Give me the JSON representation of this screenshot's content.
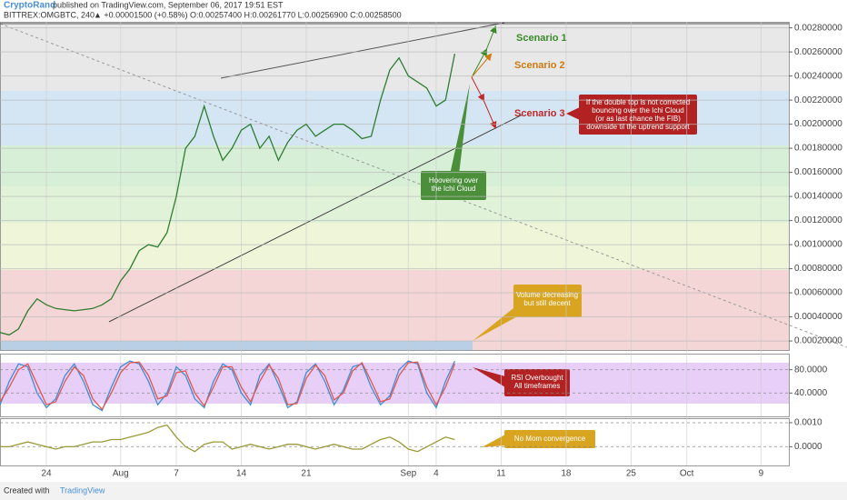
{
  "header": {
    "author": "CryptoRand",
    "published": "published on TradingView.com, September 06, 2017 19:51 EST",
    "symbol": "BITTREX:OMGBTC, 240",
    "quote": "▲ +0.00001500 (+0.58%) O:0.00257400 H:0.00261770 L:0.00256900 C:0.00258500"
  },
  "footer": {
    "created": "Created with",
    "brand": "TradingView"
  },
  "chart_data": [
    {
      "type": "line",
      "color": "#2e7d32",
      "x": [
        "2017-07-19",
        "2017-07-20",
        "2017-07-21",
        "2017-07-22",
        "2017-07-23",
        "2017-07-24",
        "2017-07-25",
        "2017-07-26",
        "2017-07-27",
        "2017-07-28",
        "2017-07-29",
        "2017-07-30",
        "2017-07-31",
        "2017-08-01",
        "2017-08-02",
        "2017-08-03",
        "2017-08-04",
        "2017-08-05",
        "2017-08-06",
        "2017-08-07",
        "2017-08-08",
        "2017-08-09",
        "2017-08-10",
        "2017-08-11",
        "2017-08-12",
        "2017-08-13",
        "2017-08-14",
        "2017-08-15",
        "2017-08-16",
        "2017-08-17",
        "2017-08-18",
        "2017-08-19",
        "2017-08-20",
        "2017-08-21",
        "2017-08-22",
        "2017-08-23",
        "2017-08-24",
        "2017-08-25",
        "2017-08-26",
        "2017-08-27",
        "2017-08-28",
        "2017-08-29",
        "2017-08-30",
        "2017-08-31",
        "2017-09-01",
        "2017-09-02",
        "2017-09-03",
        "2017-09-04",
        "2017-09-05",
        "2017-09-06"
      ],
      "values": [
        0.00027,
        0.00025,
        0.0003,
        0.00045,
        0.00055,
        0.0005,
        0.00047,
        0.00046,
        0.00045,
        0.00046,
        0.00047,
        0.0005,
        0.00055,
        0.0007,
        0.0008,
        0.00095,
        0.001,
        0.00098,
        0.0011,
        0.0014,
        0.0018,
        0.0019,
        0.00215,
        0.0019,
        0.0017,
        0.0018,
        0.00195,
        0.002,
        0.0018,
        0.0019,
        0.0017,
        0.00185,
        0.00195,
        0.002,
        0.0019,
        0.00195,
        0.002,
        0.002,
        0.00195,
        0.00188,
        0.0019,
        0.0022,
        0.00245,
        0.00255,
        0.0024,
        0.00235,
        0.0023,
        0.00215,
        0.0022,
        0.002585
      ],
      "xlim": [
        "2017-07-19",
        "2017-10-12"
      ],
      "xticks": [
        {
          "value": "2017-07-24",
          "label": "24"
        },
        {
          "value": "2017-08-01",
          "label": "Aug"
        },
        {
          "value": "2017-08-07",
          "label": "7"
        },
        {
          "value": "2017-08-14",
          "label": "14"
        },
        {
          "value": "2017-08-21",
          "label": "21"
        },
        {
          "value": "2017-09-01",
          "label": "Sep"
        },
        {
          "value": "2017-09-04",
          "label": "4"
        },
        {
          "value": "2017-09-11",
          "label": "11"
        },
        {
          "value": "2017-09-18",
          "label": "18"
        },
        {
          "value": "2017-09-25",
          "label": "25"
        },
        {
          "value": "2017-10-01",
          "label": "Oct"
        },
        {
          "value": "2017-10-09",
          "label": "9"
        }
      ],
      "ylim": [
        0.000125,
        0.00285
      ],
      "yticks": [
        {
          "value": 0.0028,
          "label": "0.00280000"
        },
        {
          "value": 0.0026,
          "label": "0.00260000"
        },
        {
          "value": 0.0024,
          "label": "0.00240000"
        },
        {
          "value": 0.0022,
          "label": "0.00220000"
        },
        {
          "value": 0.002,
          "label": "0.00200000"
        },
        {
          "value": 0.0018,
          "label": "0.00180000"
        },
        {
          "value": 0.0016,
          "label": "0.00160000"
        },
        {
          "value": 0.0014,
          "label": "0.00140000"
        },
        {
          "value": 0.0012,
          "label": "0.00120000"
        },
        {
          "value": 0.001,
          "label": "0.00100000"
        },
        {
          "value": 0.0008,
          "label": "0.00080000"
        },
        {
          "value": 0.0006,
          "label": "0.00060000"
        },
        {
          "value": 0.0004,
          "label": "0.00040000"
        },
        {
          "value": 0.0002,
          "label": "0.00020000"
        }
      ],
      "grid": true,
      "annotations": [
        "Scenario 1",
        "Scenario 2",
        "Scenario 3"
      ],
      "callouts": [
        [
          "Hoovering over",
          "the Ichi Cloud"
        ],
        [
          "Volume decreasing",
          "but still decent"
        ],
        [
          "If the double top is not corrected",
          "bouncing over the Ichi Cloud",
          "(or as last chance the FIB)",
          "downside til the uptrend support"
        ]
      ]
    },
    {
      "type": "line",
      "ylim": [
        0,
        106
      ],
      "yticks": [
        {
          "value": 80,
          "label": "80.0000"
        },
        {
          "value": 40,
          "label": "40.0000"
        }
      ],
      "series": [
        {
          "color": "#3d8fd6",
          "values": [
            20,
            60,
            90,
            85,
            40,
            15,
            30,
            70,
            90,
            60,
            20,
            10,
            50,
            85,
            95,
            90,
            60,
            20,
            40,
            85,
            70,
            30,
            15,
            60,
            90,
            80,
            40,
            20,
            70,
            90,
            55,
            15,
            25,
            75,
            90,
            60,
            20,
            45,
            85,
            90,
            50,
            20,
            35,
            80,
            95,
            90,
            40,
            15,
            60,
            95
          ]
        },
        {
          "color": "#e0584f",
          "values": [
            25,
            50,
            80,
            90,
            55,
            20,
            25,
            60,
            85,
            70,
            30,
            12,
            40,
            75,
            92,
            93,
            70,
            30,
            35,
            75,
            78,
            40,
            18,
            50,
            85,
            85,
            50,
            25,
            60,
            88,
            65,
            20,
            22,
            65,
            88,
            70,
            28,
            40,
            78,
            92,
            60,
            25,
            30,
            70,
            92,
            93,
            50,
            20,
            50,
            90
          ]
        }
      ],
      "callouts": [
        [
          "RSI Overbought",
          "All timeframes"
        ]
      ]
    },
    {
      "type": "line",
      "color": "#9a9a3a",
      "ylim": [
        -0.00078,
        0.00115
      ],
      "yticks": [
        {
          "value": 0.001,
          "label": "0.0010"
        },
        {
          "value": 0,
          "label": "0.0000"
        }
      ],
      "values": [
        0,
        0,
        0.0001,
        0.0002,
        0.0001,
        0,
        -0.0001,
        0,
        0,
        0.0001,
        0.0002,
        0.0002,
        0.0003,
        0.0003,
        0.0004,
        0.0005,
        0.0006,
        0.0008,
        0.0009,
        0.0004,
        0,
        -0.0002,
        0.0001,
        0.0002,
        0.0002,
        -0.0001,
        0,
        0.0001,
        0,
        -0.0001,
        0,
        0.0001,
        0.0001,
        0,
        -0.0001,
        0,
        0.0001,
        0,
        -0.0001,
        -0.0001,
        0.0001,
        0.0003,
        0.0004,
        0.0002,
        -0.0001,
        -0.0002,
        0,
        0.0002,
        0.0004,
        0.0003
      ],
      "callouts": [
        [
          "No Mom convergence"
        ]
      ]
    }
  ]
}
